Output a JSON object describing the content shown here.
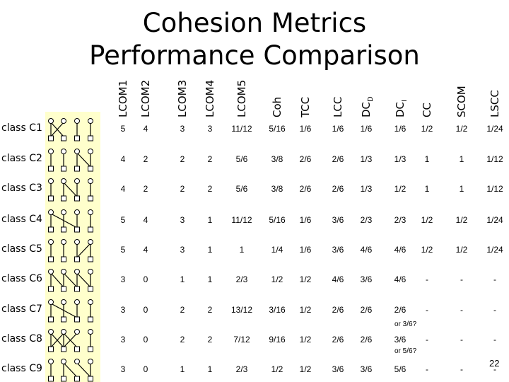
{
  "title": "Cohesion Metrics\nPerformance Comparison",
  "headers": [
    "LCOM1",
    "LCOM2",
    "LCOM3",
    "LCOM4",
    "LCOM5",
    "Coh",
    "TCC",
    "LCC",
    "DC_D",
    "DC_I",
    "CC",
    "SCOM",
    "LSCC"
  ],
  "header_sub": {
    "8": "D",
    "9": "I"
  },
  "rows": [
    {
      "label": "class C1",
      "values": [
        "5",
        "4",
        "3",
        "3",
        "11/12",
        "5/16",
        "1/6",
        "1/6",
        "1/6",
        "1/6",
        "1/2",
        "1/2",
        "1/24"
      ]
    },
    {
      "label": "class C2",
      "values": [
        "4",
        "2",
        "2",
        "2",
        "5/6",
        "3/8",
        "2/6",
        "2/6",
        "1/3",
        "1/3",
        "1",
        "1",
        "1/12"
      ]
    },
    {
      "label": "class C3",
      "values": [
        "4",
        "2",
        "2",
        "2",
        "5/6",
        "3/8",
        "2/6",
        "2/6",
        "1/3",
        "1/2",
        "1",
        "1",
        "1/12"
      ]
    },
    {
      "label": "class C4",
      "values": [
        "5",
        "4",
        "3",
        "1",
        "11/12",
        "5/16",
        "1/6",
        "3/6",
        "2/3",
        "2/3",
        "1/2",
        "1/2",
        "1/24"
      ]
    },
    {
      "label": "class C5",
      "values": [
        "5",
        "4",
        "3",
        "1",
        "1",
        "1/4",
        "1/6",
        "3/6",
        "4/6",
        "4/6",
        "1/2",
        "1/2",
        "1/24"
      ]
    },
    {
      "label": "class C6",
      "values": [
        "3",
        "0",
        "1",
        "1",
        "2/3",
        "1/2",
        "1/2",
        "4/6",
        "3/6",
        "4/6",
        "-",
        "-",
        "-"
      ]
    },
    {
      "label": "class C7",
      "values": [
        "3",
        "0",
        "2",
        "2",
        "13/12",
        "3/16",
        "1/2",
        "2/6",
        "2/6",
        "2/6",
        "-",
        "-",
        "-"
      ]
    },
    {
      "label": "class C8",
      "values": [
        "3",
        "0",
        "2",
        "2",
        "7/12",
        "9/16",
        "1/2",
        "2/6",
        "2/6",
        "3/6",
        "-",
        "-",
        "-"
      ]
    },
    {
      "label": "class C9",
      "values": [
        "3",
        "0",
        "1",
        "1",
        "2/3",
        "1/2",
        "1/2",
        "3/6",
        "3/6",
        "5/6",
        "-",
        "-",
        "-"
      ]
    }
  ],
  "notes": [
    "or 3/6?",
    "or 5/6?"
  ],
  "page_number": "22"
}
